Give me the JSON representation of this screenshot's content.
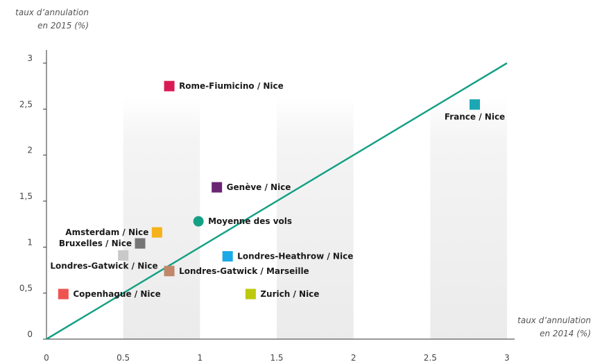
{
  "chart_data": {
    "type": "scatter",
    "title": "",
    "ylabel": [
      "taux d’annulation",
      "en 2015 (%)"
    ],
    "xlabel": [
      "taux d’annulation",
      "en 2014 (%)"
    ],
    "xlim": [
      0,
      3
    ],
    "ylim": [
      0,
      3
    ],
    "x_ticks": [
      "0",
      "0.5",
      "1",
      "1.5",
      "2",
      "2.5",
      "3"
    ],
    "y_ticks": [
      "0",
      "0,5",
      "1",
      "1,5",
      "2",
      "2,5",
      "3"
    ],
    "grid": "alternating shaded vertical bands",
    "reference_line": {
      "from": [
        0,
        0
      ],
      "to": [
        3,
        3
      ],
      "color": "#16a085"
    },
    "points": [
      {
        "label": "Rome-Fiumicino / Nice",
        "x": 0.8,
        "y": 2.75,
        "marker": "square",
        "color": "#d81b55",
        "label_pos": "right"
      },
      {
        "label": "France / Nice",
        "x": 2.79,
        "y": 2.55,
        "marker": "square",
        "color": "#1ca7b5",
        "label_pos": "below"
      },
      {
        "label": "Genève / Nice",
        "x": 1.11,
        "y": 1.65,
        "marker": "square",
        "color": "#6a2574",
        "label_pos": "right"
      },
      {
        "label": "Moyenne des vols",
        "x": 0.99,
        "y": 1.28,
        "marker": "circle",
        "color": "#14a085",
        "label_pos": "right"
      },
      {
        "label": "Amsterdam / Nice",
        "x": 0.72,
        "y": 1.16,
        "marker": "square",
        "color": "#f5b21a",
        "label_pos": "left"
      },
      {
        "label": "Bruxelles / Nice",
        "x": 0.61,
        "y": 1.04,
        "marker": "square",
        "color": "#757575",
        "label_pos": "left"
      },
      {
        "label": "Londres-Heathrow / Nice",
        "x": 1.18,
        "y": 0.9,
        "marker": "square",
        "color": "#1aa9e6",
        "label_pos": "right"
      },
      {
        "label": "Londres-Gatwick / Nice",
        "x": 0.5,
        "y": 0.91,
        "marker": "square",
        "color": "#c9c9c9",
        "label_pos": "below-left"
      },
      {
        "label": "Londres-Gatwick / Marseille",
        "x": 0.8,
        "y": 0.74,
        "marker": "square",
        "color": "#c0876a",
        "label_pos": "right"
      },
      {
        "label": "Copenhague / Nice",
        "x": 0.11,
        "y": 0.49,
        "marker": "square",
        "color": "#ef5350",
        "label_pos": "right"
      },
      {
        "label": "Zurich / Nice",
        "x": 1.33,
        "y": 0.49,
        "marker": "square",
        "color": "#bcc90f",
        "label_pos": "right"
      }
    ]
  }
}
